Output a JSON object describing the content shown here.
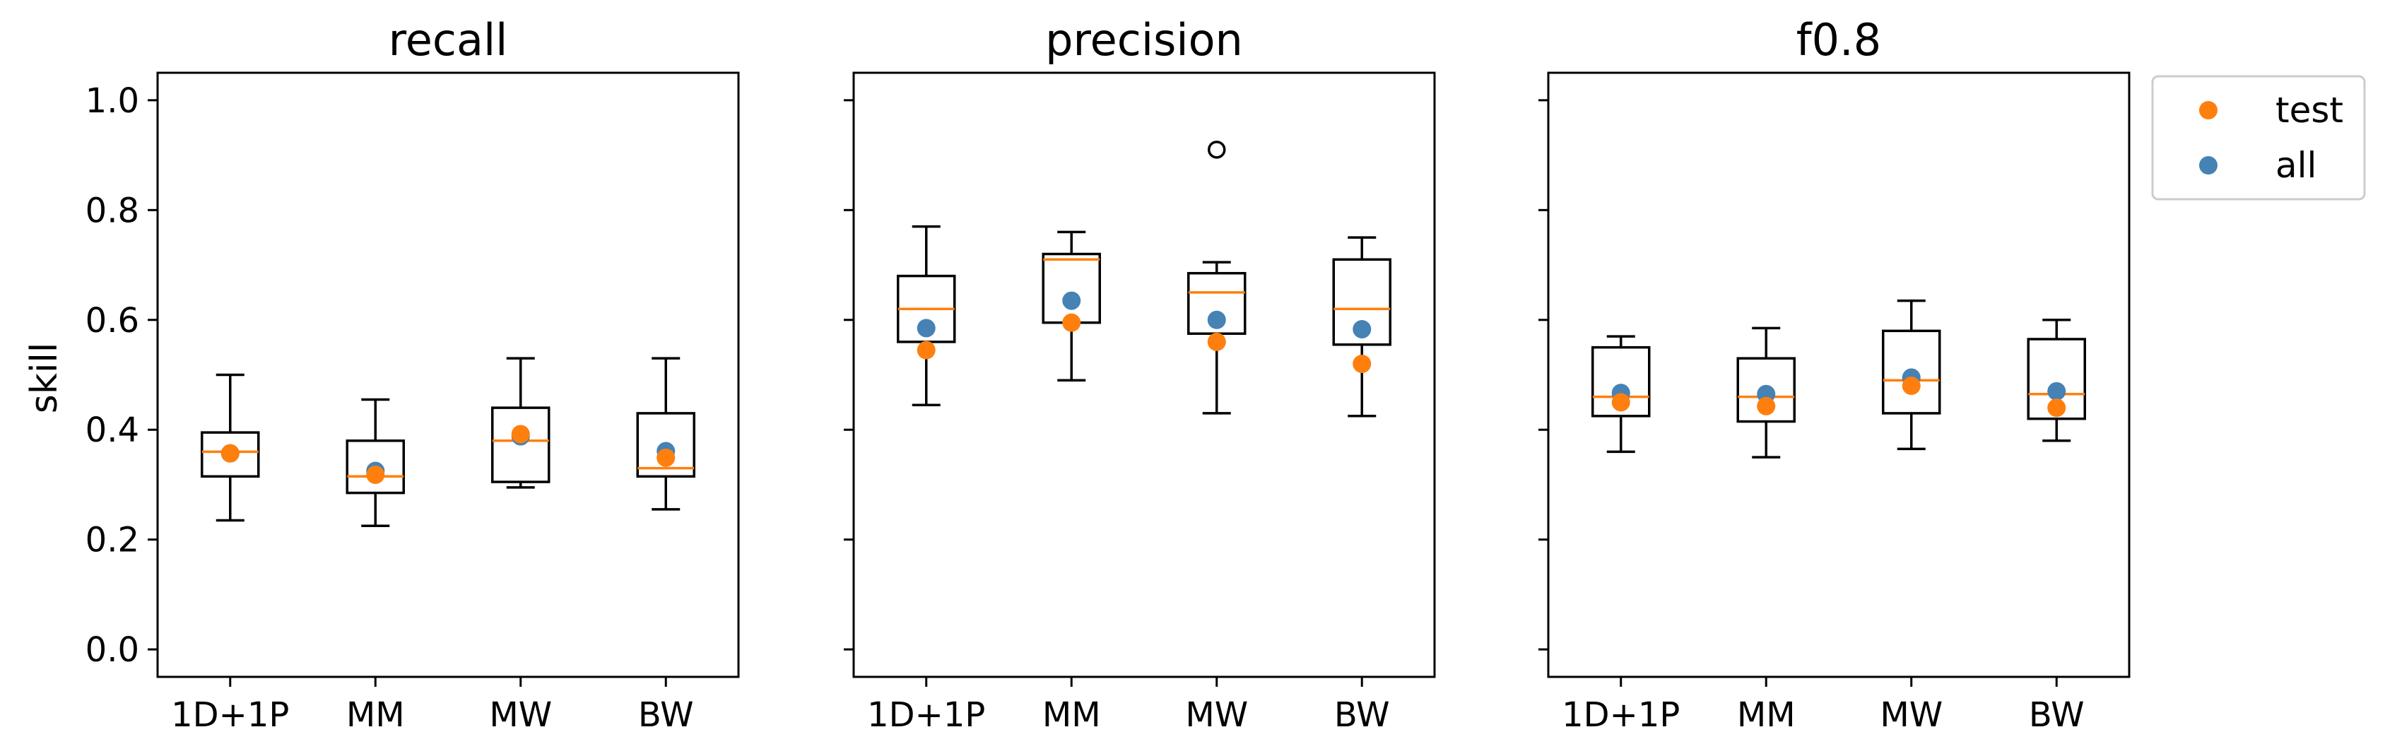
{
  "chart_data": {
    "type": "box",
    "ylabel": "skill",
    "ylim": [
      -0.05,
      1.05
    ],
    "yticks": [
      0.0,
      0.2,
      0.4,
      0.6,
      0.8,
      1.0
    ],
    "ytick_labels": [
      "0.0",
      "0.2",
      "0.4",
      "0.6",
      "0.8",
      "1.0"
    ],
    "categories": [
      "1D+1P",
      "MM",
      "MW",
      "BW"
    ],
    "legend": {
      "position": "outside-top-right",
      "entries": [
        {
          "label": "test",
          "color": "#ff7f0e"
        },
        {
          "label": "all",
          "color": "#4682b4"
        }
      ]
    },
    "colors": {
      "median": "#ff7f0e",
      "test": "#ff7f0e",
      "all": "#4682b4",
      "box": "#000000"
    },
    "panels": [
      {
        "title": "recall",
        "boxes": [
          {
            "category": "1D+1P",
            "whisker_low": 0.235,
            "q1": 0.315,
            "median": 0.36,
            "q3": 0.395,
            "whisker_high": 0.5,
            "outliers": []
          },
          {
            "category": "MM",
            "whisker_low": 0.225,
            "q1": 0.285,
            "median": 0.315,
            "q3": 0.38,
            "whisker_high": 0.455,
            "outliers": []
          },
          {
            "category": "MW",
            "whisker_low": 0.295,
            "q1": 0.305,
            "median": 0.38,
            "q3": 0.44,
            "whisker_high": 0.53,
            "outliers": []
          },
          {
            "category": "BW",
            "whisker_low": 0.255,
            "q1": 0.315,
            "median": 0.33,
            "q3": 0.43,
            "whisker_high": 0.53,
            "outliers": []
          }
        ],
        "test": [
          0.357,
          0.318,
          0.392,
          0.349
        ],
        "all": [
          0.357,
          0.325,
          0.388,
          0.361
        ]
      },
      {
        "title": "precision",
        "boxes": [
          {
            "category": "1D+1P",
            "whisker_low": 0.445,
            "q1": 0.56,
            "median": 0.62,
            "q3": 0.68,
            "whisker_high": 0.77,
            "outliers": []
          },
          {
            "category": "MM",
            "whisker_low": 0.49,
            "q1": 0.595,
            "median": 0.71,
            "q3": 0.72,
            "whisker_high": 0.76,
            "outliers": []
          },
          {
            "category": "MW",
            "whisker_low": 0.43,
            "q1": 0.575,
            "median": 0.65,
            "q3": 0.685,
            "whisker_high": 0.705,
            "outliers": [
              0.91
            ]
          },
          {
            "category": "BW",
            "whisker_low": 0.425,
            "q1": 0.555,
            "median": 0.62,
            "q3": 0.71,
            "whisker_high": 0.75,
            "outliers": []
          }
        ],
        "test": [
          0.545,
          0.595,
          0.56,
          0.52
        ],
        "all": [
          0.585,
          0.635,
          0.6,
          0.583
        ]
      },
      {
        "title": "f0.8",
        "boxes": [
          {
            "category": "1D+1P",
            "whisker_low": 0.36,
            "q1": 0.425,
            "median": 0.46,
            "q3": 0.55,
            "whisker_high": 0.57,
            "outliers": []
          },
          {
            "category": "MM",
            "whisker_low": 0.35,
            "q1": 0.415,
            "median": 0.46,
            "q3": 0.53,
            "whisker_high": 0.585,
            "outliers": []
          },
          {
            "category": "MW",
            "whisker_low": 0.365,
            "q1": 0.43,
            "median": 0.49,
            "q3": 0.58,
            "whisker_high": 0.635,
            "outliers": []
          },
          {
            "category": "BW",
            "whisker_low": 0.38,
            "q1": 0.42,
            "median": 0.465,
            "q3": 0.565,
            "whisker_high": 0.6,
            "outliers": []
          }
        ],
        "test": [
          0.45,
          0.443,
          0.48,
          0.44
        ],
        "all": [
          0.467,
          0.465,
          0.495,
          0.47
        ]
      }
    ]
  }
}
